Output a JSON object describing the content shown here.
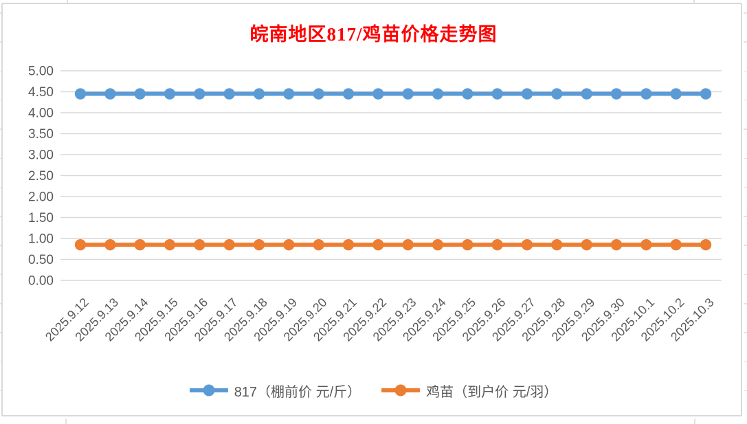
{
  "title": {
    "text": "皖南地区817/鸡苗价格走势图",
    "color": "#FF0000"
  },
  "axes": {
    "y_tick_label_color": "#595959",
    "x_tick_label_color": "#595959",
    "gridline_color": "#D9D9D9",
    "chart_border_color": "#D9D9D9"
  },
  "chart_data": {
    "type": "line",
    "title": "皖南地区817/鸡苗价格走势图",
    "categories": [
      "2025.9.12",
      "2025.9.13",
      "2025.9.14",
      "2025.9.15",
      "2025.9.16",
      "2025.9.17",
      "2025.9.18",
      "2025.9.19",
      "2025.9.20",
      "2025.9.21",
      "2025.9.22",
      "2025.9.23",
      "2025.9.24",
      "2025.9.25",
      "2025.9.26",
      "2025.9.27",
      "2025.9.28",
      "2025.9.29",
      "2025.9.30",
      "2025.10.1",
      "2025.10.2",
      "2025.10.3"
    ],
    "series": [
      {
        "name": "817（棚前价 元/斤）",
        "color": "#5B9BD5",
        "marker": "circle",
        "values": [
          4.45,
          4.45,
          4.45,
          4.45,
          4.45,
          4.45,
          4.45,
          4.45,
          4.45,
          4.45,
          4.45,
          4.45,
          4.45,
          4.45,
          4.45,
          4.45,
          4.45,
          4.45,
          4.45,
          4.45,
          4.45,
          4.45
        ]
      },
      {
        "name": "鸡苗（到户价 元/羽）",
        "color": "#ED7D31",
        "marker": "circle",
        "values": [
          0.85,
          0.85,
          0.85,
          0.85,
          0.85,
          0.85,
          0.85,
          0.85,
          0.85,
          0.85,
          0.85,
          0.85,
          0.85,
          0.85,
          0.85,
          0.85,
          0.85,
          0.85,
          0.85,
          0.85,
          0.85,
          0.85
        ]
      }
    ],
    "xlabel": "",
    "ylabel": "",
    "ylim": [
      0,
      5
    ],
    "ytick_step": 0.5,
    "ytick_labels": [
      "0.00",
      "0.50",
      "1.00",
      "1.50",
      "2.00",
      "2.50",
      "3.00",
      "3.50",
      "4.00",
      "4.50",
      "5.00"
    ],
    "grid": true,
    "legend_position": "bottom"
  }
}
